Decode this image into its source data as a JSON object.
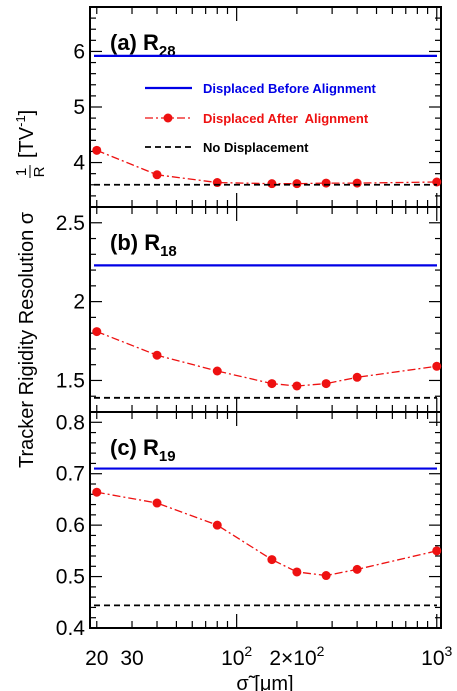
{
  "chart_data": {
    "type": "line",
    "ylabel_main": "Tracker Rigidity Resolution σ",
    "ylabel_frac_num": "1",
    "ylabel_frac_den": "R",
    "ylabel_unit": "[TV",
    "ylabel_unit_exp": "-1",
    "ylabel_unit_close": "]",
    "xlabel": "σ̃ [μm]",
    "x_scale": "log",
    "xlim": [
      18.5,
      1050
    ],
    "x_ticks": [
      {
        "value": 20,
        "label": "20"
      },
      {
        "value": 30,
        "label": "30"
      },
      {
        "value": 100,
        "label": "10",
        "exp": "2"
      },
      {
        "value": 200,
        "label": "2×10",
        "exp": "2"
      },
      {
        "value": 1000,
        "label": "10",
        "exp": "3"
      }
    ],
    "x": [
      20,
      40,
      80,
      150,
      200,
      280,
      400,
      1000
    ],
    "legend": {
      "placement": "top-right",
      "entries": [
        {
          "label": "Displaced Before Alignment",
          "color": "#0000e6",
          "style": "solid"
        },
        {
          "label": "Displaced After  Alignment",
          "color": "#ee1111",
          "style": "dashdot-marker"
        },
        {
          "label": "No Displacement",
          "color": "#000000",
          "style": "dashed"
        }
      ]
    },
    "panels": [
      {
        "label": "(a) R",
        "sub": "28",
        "ylim": [
          3.2,
          6.8
        ],
        "y_ticks": [
          {
            "value": 4,
            "label": "4"
          },
          {
            "value": 5,
            "label": "5"
          },
          {
            "value": 6,
            "label": "6"
          }
        ],
        "series": [
          {
            "name": "Displaced Before Alignment",
            "constant": 5.92
          },
          {
            "name": "Displaced After  Alignment",
            "values": [
              4.22,
              3.78,
              3.64,
              3.62,
              3.62,
              3.63,
              3.63,
              3.65
            ]
          },
          {
            "name": "No Displacement",
            "constant": 3.6
          }
        ]
      },
      {
        "label": "(b) R",
        "sub": "18",
        "ylim": [
          1.3,
          2.6
        ],
        "y_ticks": [
          {
            "value": 1.5,
            "label": "1.5"
          },
          {
            "value": 2,
            "label": "2"
          },
          {
            "value": 2.5,
            "label": "2.5"
          }
        ],
        "series": [
          {
            "name": "Displaced Before Alignment",
            "constant": 2.23
          },
          {
            "name": "Displaced After  Alignment",
            "values": [
              1.81,
              1.66,
              1.56,
              1.48,
              1.465,
              1.48,
              1.52,
              1.59
            ]
          },
          {
            "name": "No Displacement",
            "constant": 1.39
          }
        ]
      },
      {
        "label": "(c) R",
        "sub": "19",
        "ylim": [
          0.4,
          0.82
        ],
        "y_ticks": [
          {
            "value": 0.4,
            "label": "0.4"
          },
          {
            "value": 0.5,
            "label": "0.5"
          },
          {
            "value": 0.6,
            "label": "0.6"
          },
          {
            "value": 0.7,
            "label": "0.7"
          },
          {
            "value": 0.8,
            "label": "0.8"
          }
        ],
        "series": [
          {
            "name": "Displaced Before Alignment",
            "constant": 0.71
          },
          {
            "name": "Displaced After  Alignment",
            "values": [
              0.664,
              0.643,
              0.6,
              0.533,
              0.509,
              0.502,
              0.514,
              0.55
            ]
          },
          {
            "name": "No Displacement",
            "constant": 0.444
          }
        ]
      }
    ]
  }
}
